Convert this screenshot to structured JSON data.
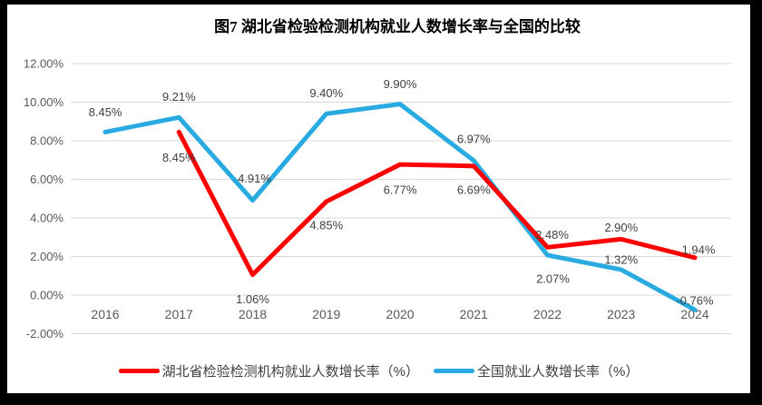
{
  "page": {
    "frame_color": "#000000",
    "background": "#ffffff"
  },
  "chart_data": {
    "type": "line",
    "title": "图7 湖北省检验检测机构就业人数增长率与全国的比较",
    "categories": [
      "2016",
      "2017",
      "2018",
      "2019",
      "2020",
      "2021",
      "2022",
      "2023",
      "2024"
    ],
    "y_ticks": [
      "12.00%",
      "10.00%",
      "8.00%",
      "6.00%",
      "4.00%",
      "2.00%",
      "0.00%",
      "-2.00%"
    ],
    "ylim": [
      -2,
      12
    ],
    "y_step": 2,
    "grid": true,
    "legend_position": "bottom",
    "series": [
      {
        "name": "湖北省检验检测机构就业人数增长率（%）",
        "color": "#FE0000",
        "values": [
          null,
          8.45,
          1.06,
          4.85,
          6.77,
          6.69,
          2.48,
          2.9,
          1.94
        ],
        "labels": [
          "",
          "8.45%",
          "1.06%",
          "4.85%",
          "6.77%",
          "6.69%",
          "2.48%",
          "2.90%",
          "1.94%"
        ],
        "label_dx": [
          0,
          0,
          0,
          0,
          0,
          0,
          5,
          0,
          4
        ],
        "label_dy": [
          0,
          28,
          27,
          26,
          28,
          26,
          -14,
          -13,
          -9
        ]
      },
      {
        "name": "全国就业人数增长率（%）",
        "color": "#29ABE2",
        "values": [
          8.45,
          9.21,
          4.91,
          9.4,
          9.9,
          6.97,
          2.07,
          1.32,
          -0.76
        ],
        "labels": [
          "8.45%",
          "9.21%",
          "4.91%",
          "9.40%",
          "9.90%",
          "6.97%",
          "2.07%",
          "1.32%",
          "-0.76%"
        ],
        "label_dx": [
          0,
          0,
          2,
          0,
          0,
          0,
          6,
          0,
          0
        ],
        "label_dy": [
          -22,
          -23,
          -24,
          -23,
          -22,
          -24,
          26,
          -11,
          -10
        ]
      }
    ]
  }
}
